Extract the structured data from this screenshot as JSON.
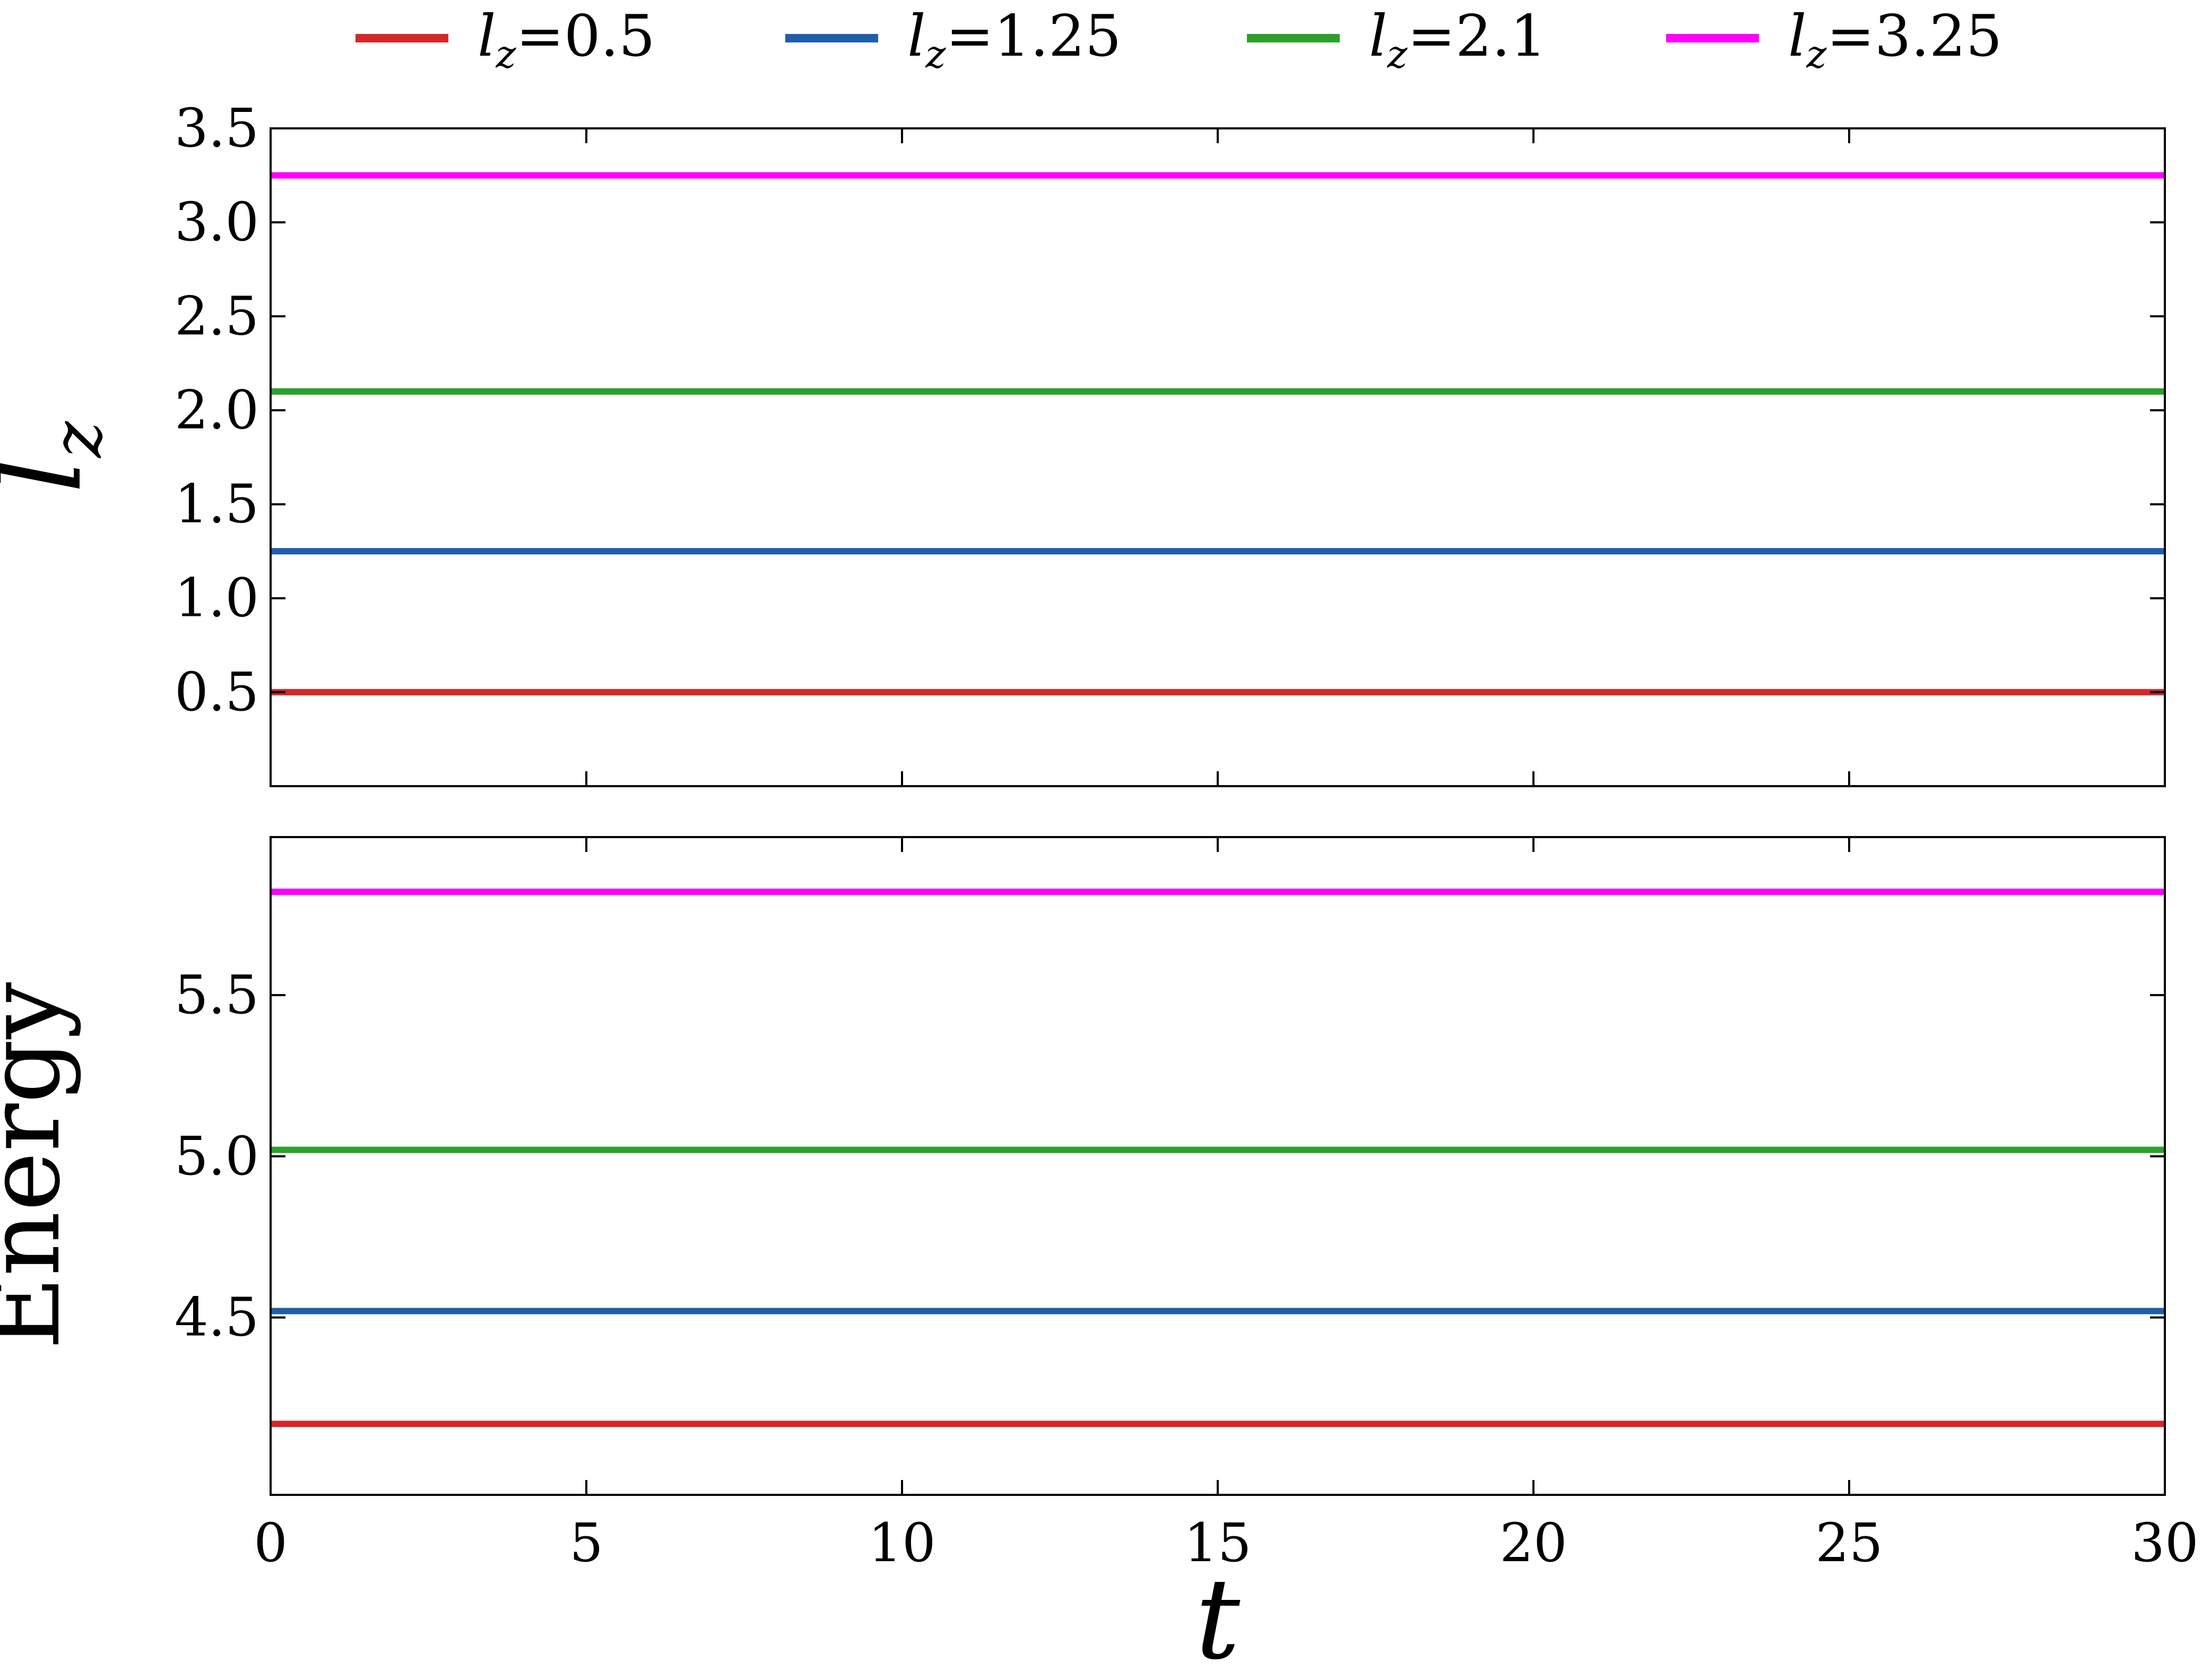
{
  "chart_data": {
    "type": "line",
    "legend": {
      "placement": "top",
      "entries": [
        {
          "name": "l_z",
          "sub": "z",
          "value": "0.5",
          "color": "#d62728"
        },
        {
          "name": "l_z",
          "sub": "z",
          "value": "1.25",
          "color": "#1f5fa8"
        },
        {
          "name": "l_z",
          "sub": "z",
          "value": "2.1",
          "color": "#2ca02c"
        },
        {
          "name": "l_z",
          "sub": "z",
          "value": "3.25",
          "color": "#ff00ff"
        }
      ]
    },
    "x": {
      "label": "t",
      "range": [
        0,
        30
      ],
      "ticks": [
        0,
        5,
        10,
        15,
        20,
        25,
        30
      ],
      "tick_labels": [
        "0",
        "5",
        "10",
        "15",
        "20",
        "25",
        "30"
      ]
    },
    "panels": [
      {
        "id": "lz",
        "ylabel_main": "l",
        "ylabel_sub": "z",
        "ylim": [
          0.0,
          3.5
        ],
        "yticks": [
          0.5,
          1.0,
          1.5,
          2.0,
          2.5,
          3.0,
          3.5
        ],
        "ytick_labels": [
          "0.5",
          "1.0",
          "1.5",
          "2.0",
          "2.5",
          "3.0",
          "3.5"
        ],
        "series": [
          {
            "color": "#d62728",
            "x": [
              0,
              30
            ],
            "y": [
              0.5,
              0.5
            ]
          },
          {
            "color": "#1f5fa8",
            "x": [
              0,
              30
            ],
            "y": [
              1.25,
              1.25
            ]
          },
          {
            "color": "#2ca02c",
            "x": [
              0,
              30
            ],
            "y": [
              2.1,
              2.1
            ]
          },
          {
            "color": "#ff00ff",
            "x": [
              0,
              30
            ],
            "y": [
              3.25,
              3.25
            ]
          }
        ]
      },
      {
        "id": "energy",
        "ylabel_main": "Energy",
        "ylabel_sub": "",
        "ylim": [
          3.95,
          5.99
        ],
        "yticks": [
          4.5,
          5.0,
          5.5
        ],
        "ytick_labels": [
          "4.5",
          "5.0",
          "5.5"
        ],
        "series": [
          {
            "color": "#d62728",
            "x": [
              0,
              30
            ],
            "y": [
              4.17,
              4.17
            ]
          },
          {
            "color": "#1f5fa8",
            "x": [
              0,
              30
            ],
            "y": [
              4.52,
              4.52
            ]
          },
          {
            "color": "#2ca02c",
            "x": [
              0,
              30
            ],
            "y": [
              5.02,
              5.02
            ]
          },
          {
            "color": "#ff00ff",
            "x": [
              0,
              30
            ],
            "y": [
              5.82,
              5.82
            ]
          }
        ]
      }
    ],
    "grid": false
  }
}
